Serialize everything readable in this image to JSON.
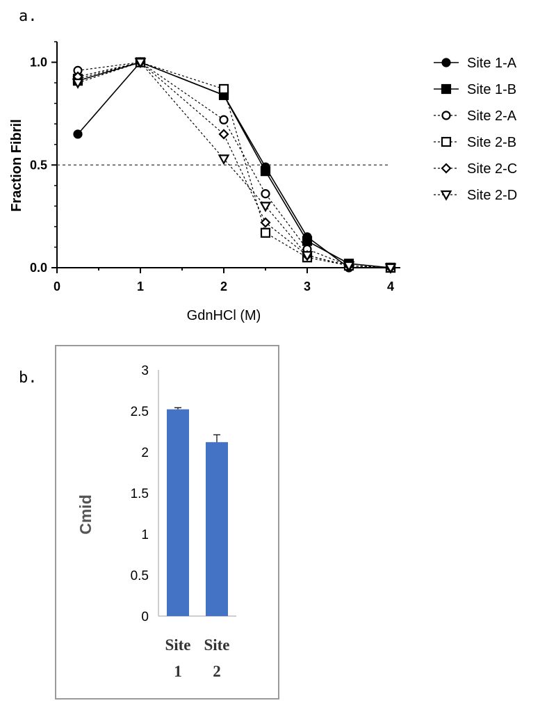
{
  "chart_data": [
    {
      "panel": "a.",
      "type": "line",
      "xlabel": "GdnHCl (M)",
      "ylabel": "Fraction Fibril",
      "xlim": [
        0,
        4
      ],
      "ylim": [
        0,
        1.1
      ],
      "xticks": [
        "0",
        "1",
        "2",
        "3",
        "4"
      ],
      "yticks": [
        "0.0",
        "0.5",
        "1.0"
      ],
      "reference_line": 0.5,
      "legend_position": "right",
      "series": [
        {
          "name": "Site 1-A",
          "marker": "circle-filled",
          "dashed": false,
          "x": [
            0.25,
            1,
            2,
            2.5,
            3,
            3.5,
            4
          ],
          "y": [
            0.65,
            1.0,
            0.84,
            0.49,
            0.15,
            0.0,
            0.0
          ]
        },
        {
          "name": "Site 1-B",
          "marker": "square-filled",
          "dashed": false,
          "x": [
            0.25,
            1,
            2,
            2.5,
            3,
            3.5,
            4
          ],
          "y": [
            0.91,
            1.0,
            0.84,
            0.47,
            0.13,
            0.02,
            0.0
          ]
        },
        {
          "name": "Site 2-A",
          "marker": "circle-open",
          "dashed": true,
          "x": [
            0.25,
            1,
            2,
            2.5,
            3,
            3.5,
            4
          ],
          "y": [
            0.96,
            1.0,
            0.72,
            0.36,
            0.09,
            0.01,
            0.0
          ]
        },
        {
          "name": "Site 2-B",
          "marker": "square-open",
          "dashed": true,
          "x": [
            0.25,
            1,
            2,
            2.5,
            3,
            3.5,
            4
          ],
          "y": [
            0.92,
            1.0,
            0.87,
            0.17,
            0.05,
            0.01,
            0.0
          ]
        },
        {
          "name": "Site 2-C",
          "marker": "diamond-open",
          "dashed": true,
          "x": [
            0.25,
            1,
            2,
            2.5,
            3,
            3.5,
            4
          ],
          "y": [
            0.93,
            1.0,
            0.65,
            0.22,
            0.06,
            0.01,
            0.0
          ]
        },
        {
          "name": "Site 2-D",
          "marker": "triangle-down-open",
          "dashed": true,
          "x": [
            0.25,
            1,
            2,
            2.5,
            3,
            3.5,
            4
          ],
          "y": [
            0.9,
            1.0,
            0.53,
            0.3,
            0.06,
            0.01,
            0.0
          ]
        }
      ]
    },
    {
      "panel": "b.",
      "type": "bar",
      "ylabel": "Cmid",
      "ylim": [
        0,
        3
      ],
      "yticks": [
        "0",
        "0.5",
        "1",
        "1.5",
        "2",
        "2.5",
        "3"
      ],
      "categories": [
        {
          "line1": "Site",
          "line2": "1"
        },
        {
          "line1": "Site",
          "line2": "2"
        }
      ],
      "values": [
        2.52,
        2.12
      ],
      "errors": [
        0.02,
        0.09
      ],
      "bar_color": "#4472C4"
    }
  ]
}
